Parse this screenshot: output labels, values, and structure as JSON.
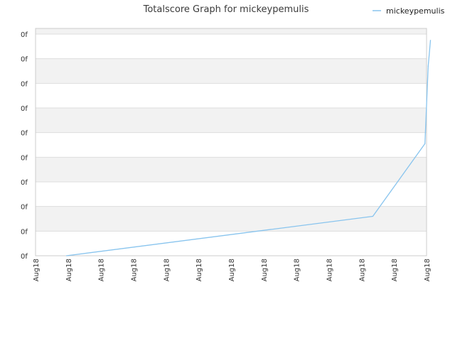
{
  "chart_data": {
    "type": "line",
    "title": "Totalscore Graph for mickeypemulis",
    "xlabel": "",
    "ylabel": "",
    "x_tick_labels": [
      "Aug18",
      "Aug18",
      "Aug18",
      "Aug18",
      "Aug18",
      "Aug18",
      "Aug18",
      "Aug18",
      "Aug18",
      "Aug18",
      "Aug18",
      "Aug18",
      "Aug18"
    ],
    "y_tick_labels": [
      "0f",
      "0f",
      "0f",
      "0f",
      "0f",
      "0f",
      "0f",
      "0f",
      "0f",
      "0f"
    ],
    "ylim": [
      0,
      9
    ],
    "xlim": [
      0,
      12
    ],
    "grid": true,
    "alternate_bands": true,
    "legend_position": "top-right",
    "series": [
      {
        "name": "mickeypemulis",
        "color": "#88c4ee",
        "x": [
          0.95,
          10.35,
          11.95,
          12.05,
          12.12
        ],
        "y": [
          0.0,
          1.6,
          4.55,
          7.7,
          8.75
        ]
      }
    ]
  },
  "colors": {
    "band": "#f2f2f2",
    "gridline": "#dddddd",
    "axis": "#cccccc"
  }
}
